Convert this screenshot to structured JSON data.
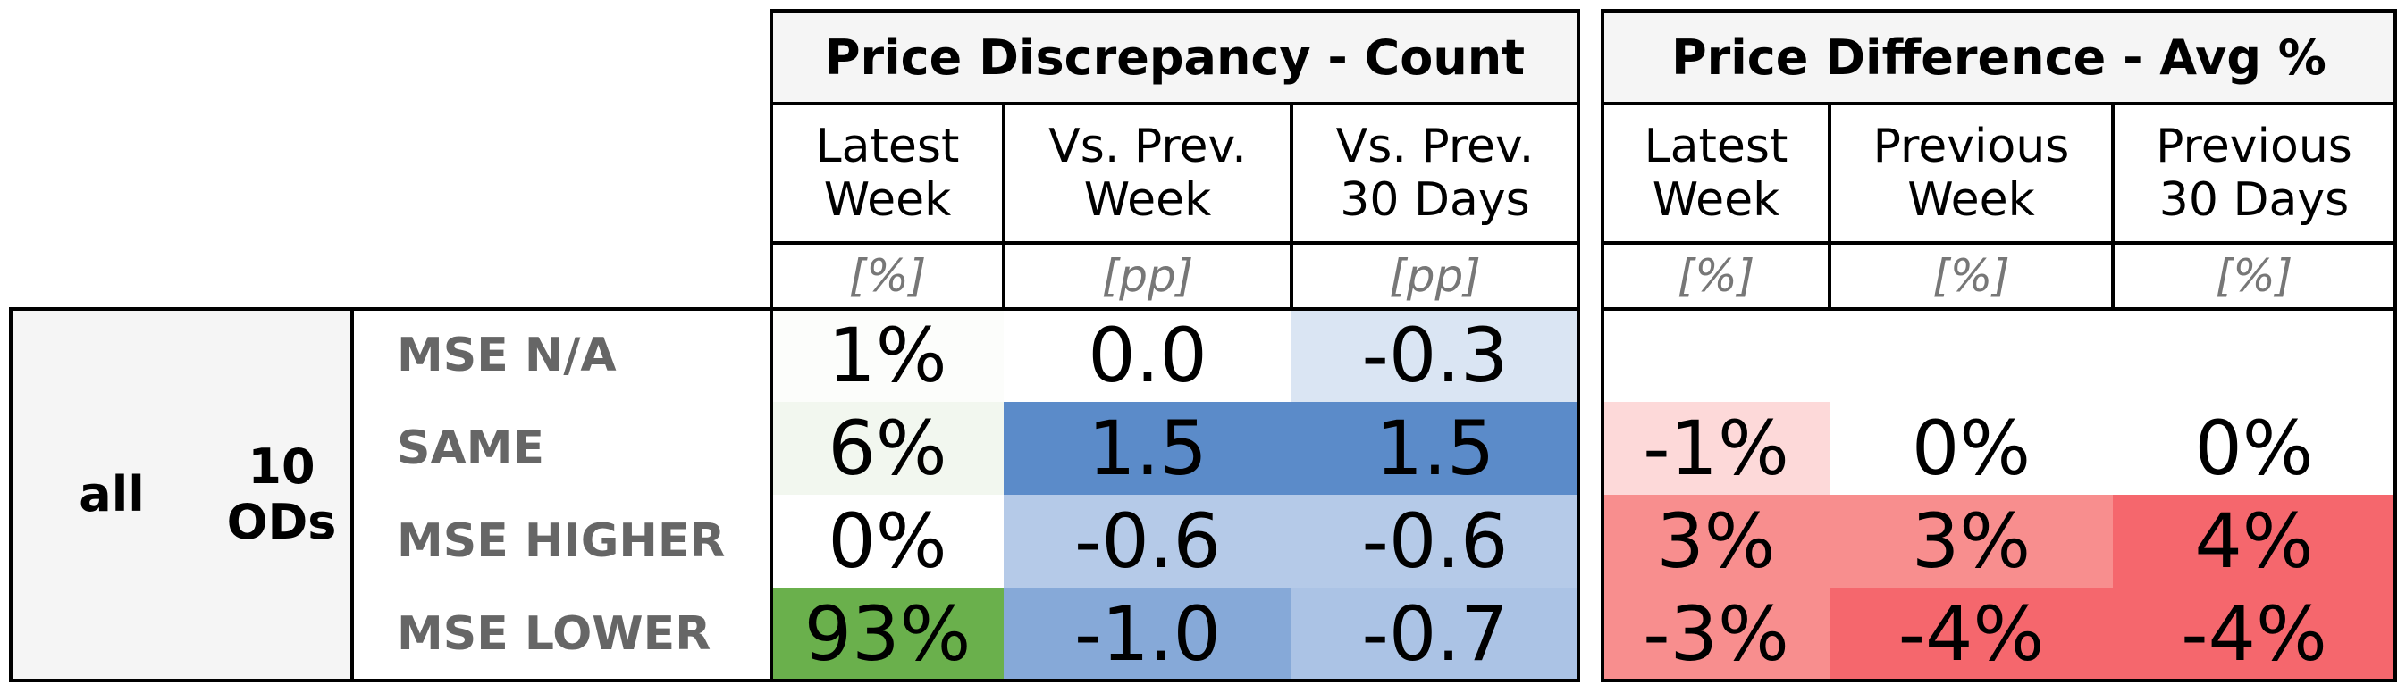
{
  "chart_data": {
    "type": "table",
    "row_group": {
      "outer": "all",
      "inner": "10\nODs"
    },
    "rows": [
      "MSE N/A",
      "SAME",
      "MSE HIGHER",
      "MSE LOWER"
    ],
    "groups": [
      {
        "title": "Price Discrepancy - Count",
        "columns": [
          {
            "header": "Latest\nWeek",
            "unit": "[%]",
            "values": [
              "1%",
              "6%",
              "0%",
              "93%"
            ],
            "colors": [
              "#fcfdfb",
              "#f2f7ef",
              "#ffffff",
              "#6ab04c"
            ]
          },
          {
            "header": "Vs. Prev.\nWeek",
            "unit": "[pp]",
            "values": [
              "0.0",
              "1.5",
              "-0.6",
              "-1.0"
            ],
            "colors": [
              "#ffffff",
              "#5b8bc9",
              "#b5cae8",
              "#86a9d8"
            ]
          },
          {
            "header": "Vs. Prev.\n30 Days",
            "unit": "[pp]",
            "values": [
              "-0.3",
              "1.5",
              "-0.6",
              "-0.7"
            ],
            "colors": [
              "#dae5f3",
              "#5b8bc9",
              "#b5cae8",
              "#abc3e5"
            ]
          }
        ]
      },
      {
        "title": "Price Difference - Avg %",
        "columns": [
          {
            "header": "Latest\nWeek",
            "unit": "[%]",
            "values": [
              "",
              "-1%",
              "3%",
              "-3%"
            ],
            "colors": [
              "#ffffff",
              "#fdd9d9",
              "#f88e8e",
              "#f88e8e"
            ]
          },
          {
            "header": "Previous\nWeek",
            "unit": "[%]",
            "values": [
              "",
              "0%",
              "3%",
              "-4%"
            ],
            "colors": [
              "#ffffff",
              "#ffffff",
              "#f88e8e",
              "#f5676d"
            ]
          },
          {
            "header": "Previous\n30 Days",
            "unit": "[%]",
            "values": [
              "",
              "0%",
              "4%",
              "-4%"
            ],
            "colors": [
              "#ffffff",
              "#ffffff",
              "#f5676d",
              "#f5676d"
            ]
          }
        ]
      }
    ]
  }
}
